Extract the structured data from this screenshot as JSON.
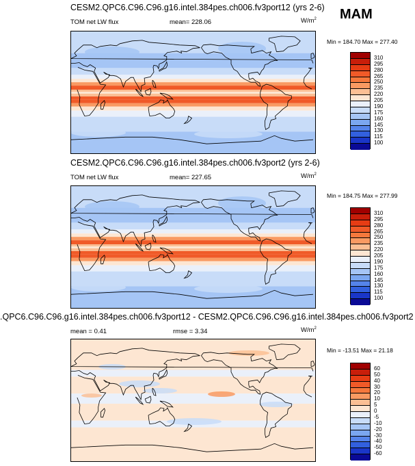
{
  "season": "MAM",
  "panels": [
    {
      "title": "CESM2.QPC6.C96.C96.g16.intel.384pes.ch006.fv3port12 (yrs 2-6)",
      "left_label": "TOM net LW flux",
      "center_label": "mean= 228.06",
      "units": "W/m",
      "units_sup": "2",
      "minmax": "Min = 184.70 Max = 277.40",
      "levels": [
        "310",
        "295",
        "280",
        "265",
        "250",
        "235",
        "220",
        "205",
        "190",
        "175",
        "160",
        "145",
        "130",
        "115",
        "100"
      ],
      "colors": [
        "#a00000",
        "#c81e0a",
        "#e63c14",
        "#f05a28",
        "#f5783c",
        "#f99a62",
        "#fbbf94",
        "#fde6d2",
        "#eaf0fa",
        "#c8dcf8",
        "#a5c5f5",
        "#7ba7f0",
        "#5584ea",
        "#3260de",
        "#1a36c8",
        "#0a0a96"
      ],
      "bands": [
        {
          "lat": 90,
          "color": "#c8dcf8"
        },
        {
          "lat": 58,
          "color": "#a5c5f5"
        },
        {
          "lat": 36,
          "color": "#c8dcf8"
        },
        {
          "lat": 26,
          "color": "#eaf0fa"
        },
        {
          "lat": 20,
          "color": "#fde6d2"
        },
        {
          "lat": 15,
          "color": "#f99a62"
        },
        {
          "lat": 10,
          "color": "#f05a28"
        },
        {
          "lat": 4,
          "color": "#fbbf94"
        },
        {
          "lat": 1,
          "color": "#fde6d2"
        },
        {
          "lat": -2,
          "color": "#fbbf94"
        },
        {
          "lat": -6,
          "color": "#f05a28"
        },
        {
          "lat": -11,
          "color": "#f05a28"
        },
        {
          "lat": -16,
          "color": "#f99a62"
        },
        {
          "lat": -21,
          "color": "#fde6d2"
        },
        {
          "lat": -27,
          "color": "#eaf0fa"
        },
        {
          "lat": -36,
          "color": "#c8dcf8"
        },
        {
          "lat": -58,
          "color": "#a5c5f5"
        }
      ]
    },
    {
      "title": "CESM2.QPC6.C96.C96.g16.intel.384pes.ch006.fv3port2 (yrs 2-6)",
      "left_label": "TOM net LW flux",
      "center_label": "mean= 227.65",
      "units": "W/m",
      "units_sup": "2",
      "minmax": "Min = 184.75 Max = 277.99",
      "levels": [
        "310",
        "295",
        "280",
        "265",
        "250",
        "235",
        "220",
        "205",
        "190",
        "175",
        "160",
        "145",
        "130",
        "115",
        "100"
      ],
      "colors": [
        "#a00000",
        "#c81e0a",
        "#e63c14",
        "#f05a28",
        "#f5783c",
        "#f99a62",
        "#fbbf94",
        "#fde6d2",
        "#eaf0fa",
        "#c8dcf8",
        "#a5c5f5",
        "#7ba7f0",
        "#5584ea",
        "#3260de",
        "#1a36c8",
        "#0a0a96"
      ],
      "bands": [
        {
          "lat": 90,
          "color": "#c8dcf8"
        },
        {
          "lat": 58,
          "color": "#a5c5f5"
        },
        {
          "lat": 36,
          "color": "#c8dcf8"
        },
        {
          "lat": 26,
          "color": "#eaf0fa"
        },
        {
          "lat": 20,
          "color": "#fde6d2"
        },
        {
          "lat": 15,
          "color": "#f99a62"
        },
        {
          "lat": 10,
          "color": "#f05a28"
        },
        {
          "lat": 4,
          "color": "#fbbf94"
        },
        {
          "lat": 1,
          "color": "#fde6d2"
        },
        {
          "lat": -2,
          "color": "#fbbf94"
        },
        {
          "lat": -6,
          "color": "#f05a28"
        },
        {
          "lat": -11,
          "color": "#f05a28"
        },
        {
          "lat": -16,
          "color": "#f99a62"
        },
        {
          "lat": -21,
          "color": "#fde6d2"
        },
        {
          "lat": -27,
          "color": "#eaf0fa"
        },
        {
          "lat": -36,
          "color": "#c8dcf8"
        },
        {
          "lat": -58,
          "color": "#a5c5f5"
        }
      ]
    },
    {
      "title": ".QPC6.C96.C96.g16.intel.384pes.ch006.fv3port12 - CESM2.QPC6.C96.C96.g16.intel.384pes.ch006.fv3port2",
      "left_label": "mean =  0.41",
      "center_label": "rmse =  3.34",
      "units": "W/m",
      "units_sup": "2",
      "minmax": "Min = -13.51 Max = 21.18",
      "levels": [
        "60",
        "50",
        "40",
        "30",
        "20",
        "10",
        "5",
        "0",
        "-5",
        "-10",
        "-20",
        "-30",
        "-40",
        "-50",
        "-60"
      ],
      "colors": [
        "#a00000",
        "#c81e0a",
        "#e63c14",
        "#f05a28",
        "#f5783c",
        "#f99a62",
        "#fbbf94",
        "#fde6d2",
        "#eaf0fa",
        "#c8dcf8",
        "#a5c5f5",
        "#7ba7f0",
        "#5584ea",
        "#3260de",
        "#1a36c8",
        "#0a0a96"
      ],
      "bands": [
        {
          "lat": 90,
          "color": "#fde6d2"
        },
        {
          "lat": 45,
          "color": "#eaf0fa"
        },
        {
          "lat": 35,
          "color": "#fde6d2"
        },
        {
          "lat": 10,
          "color": "#eaf0fa"
        },
        {
          "lat": -5,
          "color": "#fde6d2"
        },
        {
          "lat": -30,
          "color": "#eaf0fa"
        },
        {
          "lat": -40,
          "color": "#fde6d2"
        }
      ]
    }
  ]
}
